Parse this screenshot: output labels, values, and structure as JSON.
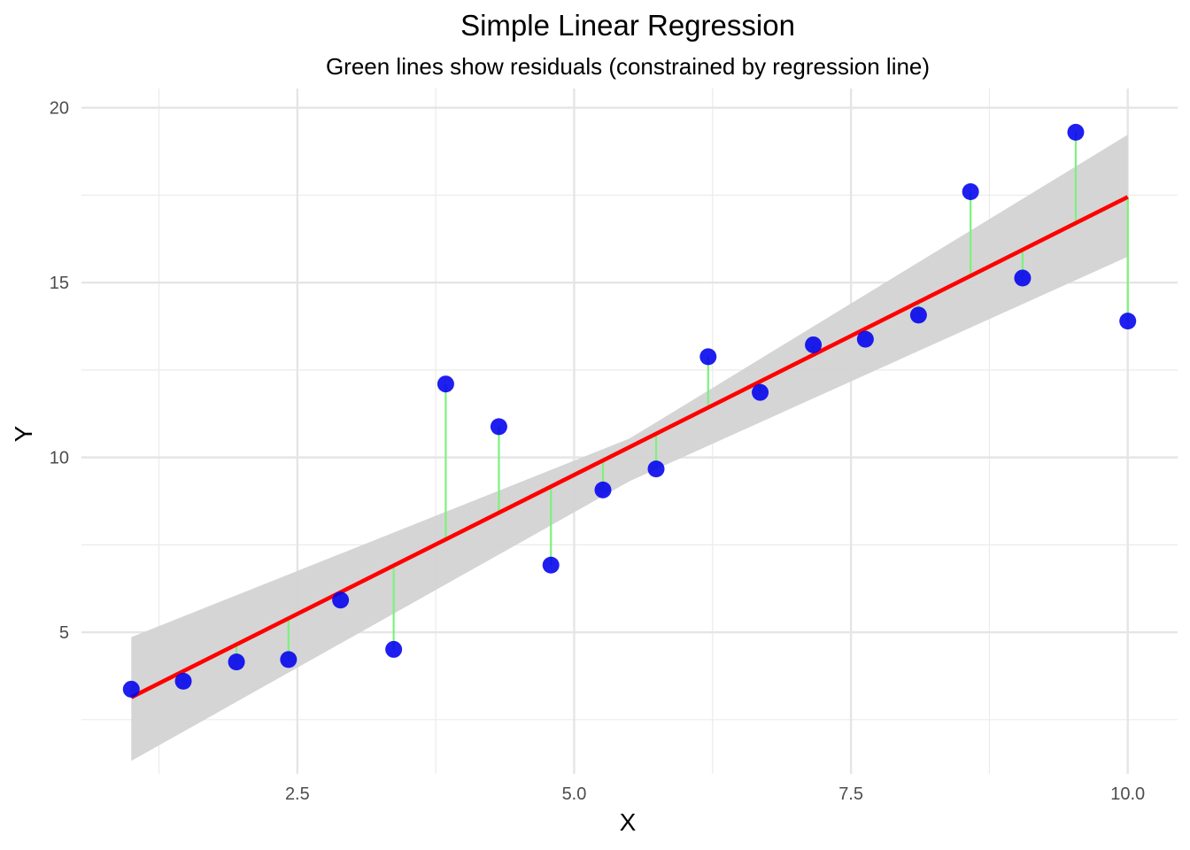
{
  "chart_data": {
    "type": "scatter",
    "title": "Simple Linear Regression",
    "subtitle": "Green lines show residuals (constrained by regression line)",
    "xlabel": "X",
    "ylabel": "Y",
    "xlim": [
      0.55,
      10.45
    ],
    "ylim": [
      0.95,
      20.55
    ],
    "x_ticks": [
      2.5,
      5.0,
      7.5,
      10.0
    ],
    "x_tick_labels": [
      "2.5",
      "5.0",
      "7.5",
      "10.0"
    ],
    "y_ticks": [
      5,
      10,
      15,
      20
    ],
    "y_tick_labels": [
      "5",
      "10",
      "15",
      "20"
    ],
    "x_minor_ticks": [
      1.25,
      3.75,
      6.25,
      8.75
    ],
    "y_minor_ticks": [
      2.5,
      7.5,
      12.5,
      17.5
    ],
    "grid": true,
    "points": {
      "x": [
        1.0,
        1.47,
        1.95,
        2.42,
        2.89,
        3.37,
        3.84,
        4.32,
        4.79,
        5.26,
        5.74,
        6.21,
        6.68,
        7.16,
        7.63,
        8.11,
        8.58,
        9.05,
        9.53,
        10.0
      ],
      "y": [
        3.37,
        3.6,
        4.15,
        4.22,
        5.92,
        4.51,
        12.1,
        10.88,
        6.92,
        9.07,
        9.67,
        12.88,
        11.86,
        13.22,
        13.38,
        14.07,
        17.6,
        15.13,
        19.3,
        13.9
      ],
      "color": "#0000ee"
    },
    "regression_line": {
      "intercept": 1.55,
      "slope": 1.59,
      "x_range": [
        1.0,
        10.0
      ],
      "color": "#ff0000"
    },
    "confidence_band": {
      "x": [
        1.0,
        5.5,
        10.0
      ],
      "lower": [
        1.32,
        9.32,
        15.74
      ],
      "upper": [
        4.86,
        10.54,
        19.23
      ],
      "color": "#d3d3d3"
    },
    "residual_color": "#7cf27c"
  }
}
